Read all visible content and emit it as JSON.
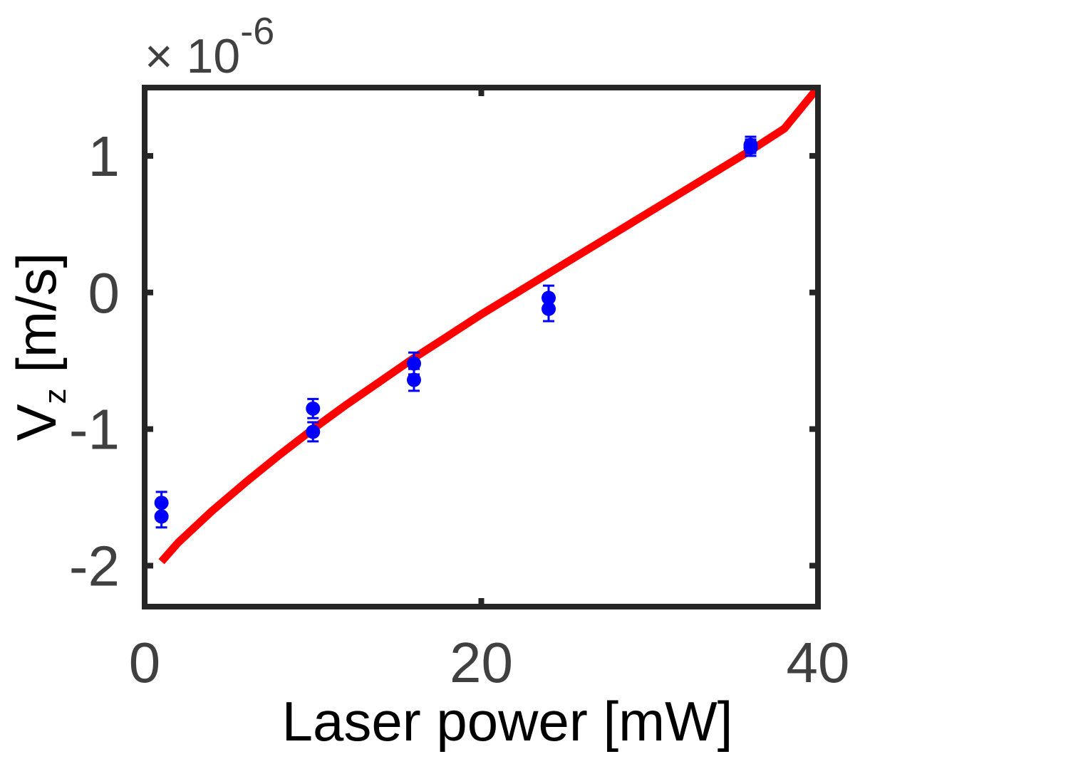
{
  "chart_data": {
    "type": "scatter",
    "title": "",
    "xlabel": "Laser power [mW]",
    "ylabel": {
      "main": "V",
      "subscript": "z",
      "unit": " [m/s]"
    },
    "y_multiplier": {
      "prefix": "× 10",
      "exponent": "-6"
    },
    "xlim": [
      0,
      40
    ],
    "ylim": [
      -2.3,
      1.5
    ],
    "xticks": [
      0,
      20,
      40
    ],
    "xtick_labels": [
      "0",
      "20",
      "40"
    ],
    "yticks": [
      -2,
      -1,
      0,
      1
    ],
    "ytick_labels": [
      "-2",
      "-1",
      "0",
      "1"
    ],
    "grid": false,
    "legend": null,
    "series": [
      {
        "type": "scatter",
        "color": "#0000ff",
        "points": [
          {
            "x": 1,
            "y": -1.54,
            "err": 0.08
          },
          {
            "x": 1,
            "y": -1.64,
            "err": 0.08
          },
          {
            "x": 10,
            "y": -0.85,
            "err": 0.07
          },
          {
            "x": 10,
            "y": -1.02,
            "err": 0.07
          },
          {
            "x": 16,
            "y": -0.52,
            "err": 0.08
          },
          {
            "x": 16,
            "y": -0.64,
            "err": 0.08
          },
          {
            "x": 24,
            "y": -0.04,
            "err": 0.09
          },
          {
            "x": 24,
            "y": -0.12,
            "err": 0.09
          },
          {
            "x": 36,
            "y": 1.06,
            "err": 0.06
          },
          {
            "x": 36,
            "y": 1.08,
            "err": 0.06
          }
        ]
      },
      {
        "type": "line",
        "color": "#ff0000",
        "x": [
          1,
          2,
          4,
          6,
          8,
          10,
          12,
          14,
          16,
          18,
          20,
          22,
          24,
          26,
          28,
          30,
          32,
          34,
          36,
          38,
          40
        ],
        "y": [
          -1.97,
          -1.83,
          -1.6,
          -1.39,
          -1.19,
          -1.0,
          -0.82,
          -0.65,
          -0.48,
          -0.32,
          -0.16,
          -0.01,
          0.14,
          0.29,
          0.44,
          0.59,
          0.74,
          0.89,
          1.04,
          1.2,
          1.5
        ]
      }
    ]
  }
}
